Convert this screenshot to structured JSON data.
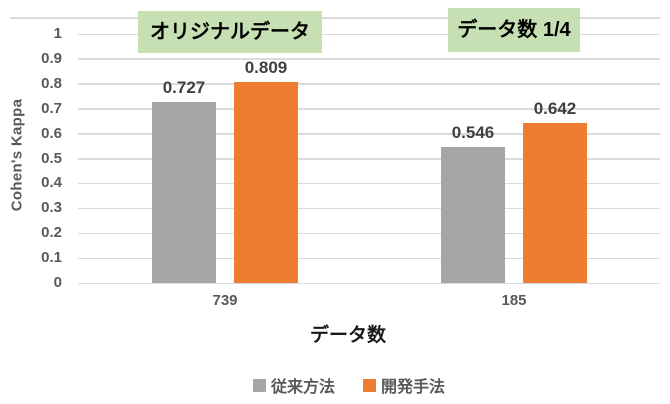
{
  "chart_data": {
    "type": "bar",
    "title": "",
    "categories": [
      "739",
      "185"
    ],
    "series": [
      {
        "name": "従来方法",
        "color": "#A6A6A6",
        "values": [
          0.727,
          0.546
        ]
      },
      {
        "name": "開発手法",
        "color": "#ED7D31",
        "values": [
          0.809,
          0.642
        ]
      }
    ],
    "data_labels": [
      [
        "0.727",
        "0.546"
      ],
      [
        "0.809",
        "0.642"
      ]
    ],
    "xlabel": "データ数",
    "ylabel": "Cohen's Kappa",
    "ylim": [
      0,
      1
    ],
    "ytick_step": 0.1,
    "yticks": [
      "0",
      "0.1",
      "0.2",
      "0.3",
      "0.4",
      "0.5",
      "0.6",
      "0.7",
      "0.8",
      "0.9",
      "1"
    ],
    "grid": true,
    "legend_position": "bottom",
    "annotations": [
      {
        "text": "オリジナルデータ",
        "bg_color": "#C6E0B4",
        "over_category": "739"
      },
      {
        "text": "データ数 1/4",
        "bg_color": "#C6E0B4",
        "over_category": "185"
      }
    ]
  },
  "colors": {
    "background": "#FFFFFF",
    "gridline": "#DBDBDB",
    "axis_text": "#595959",
    "value_label_text": "#404040",
    "annotation_text": "#000000",
    "axis_title_text": "#1A1A1A"
  }
}
